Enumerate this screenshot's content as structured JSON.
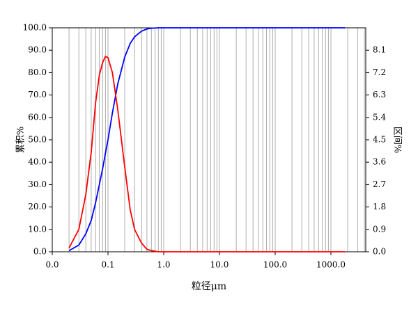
{
  "chart_data": {
    "type": "line",
    "x_label": "粒径μm",
    "y_label": "累积%",
    "y2_label": "区间%",
    "x": [
      0.02,
      0.03,
      0.04,
      0.05,
      0.06,
      0.07,
      0.08,
      0.09,
      0.1,
      0.12,
      0.15,
      0.2,
      0.25,
      0.3,
      0.4,
      0.5,
      0.6,
      0.8,
      1,
      1800
    ],
    "series": [
      {
        "color": "#0000ff",
        "values": [
          0.5,
          3,
          8,
          14,
          22,
          30,
          37,
          44,
          50,
          62,
          75,
          87,
          93,
          96,
          98.5,
          99.5,
          99.8,
          100,
          100,
          100
        ]
      },
      {
        "color": "#ff0000",
        "axis": "y2",
        "values": [
          0.15,
          0.9,
          2.3,
          4,
          6,
          7.1,
          7.6,
          7.85,
          7.8,
          7.2,
          5.7,
          3.4,
          1.7,
          0.9,
          0.35,
          0.1,
          0.05,
          0,
          0,
          0
        ]
      }
    ],
    "xlim": [
      0.01,
      4217
    ],
    "x_log": true,
    "minor_grid": true,
    "xticks": [
      {
        "value": 0.01,
        "label": "0.0"
      },
      0.1,
      {
        "value": 1,
        "label": "1.0"
      },
      {
        "value": 10,
        "label": "10.0"
      },
      {
        "value": 100,
        "label": "100.0"
      },
      {
        "value": 1000,
        "label": "1000.0"
      }
    ],
    "ylim": [
      0,
      100
    ],
    "yticks": [
      {
        "value": 0,
        "label": "0.0"
      },
      {
        "value": 10,
        "label": "10.0"
      },
      {
        "value": 20,
        "label": "20.0"
      },
      {
        "value": 30,
        "label": "30.0"
      },
      {
        "value": 40,
        "label": "40.0"
      },
      {
        "value": 50,
        "label": "50.0"
      },
      {
        "value": 60,
        "label": "60.0"
      },
      {
        "value": 70,
        "label": "70.0"
      },
      {
        "value": 80,
        "label": "80.0"
      },
      {
        "value": 90,
        "label": "90.0"
      },
      {
        "value": 100,
        "label": "100.0"
      }
    ],
    "y2lim": [
      0,
      9
    ],
    "y2ticks": [
      {
        "value": 0,
        "label": "0.0"
      },
      0.9,
      1.8,
      2.7,
      3.6,
      4.5,
      5.4,
      6.3,
      7.2,
      8.1
    ]
  }
}
